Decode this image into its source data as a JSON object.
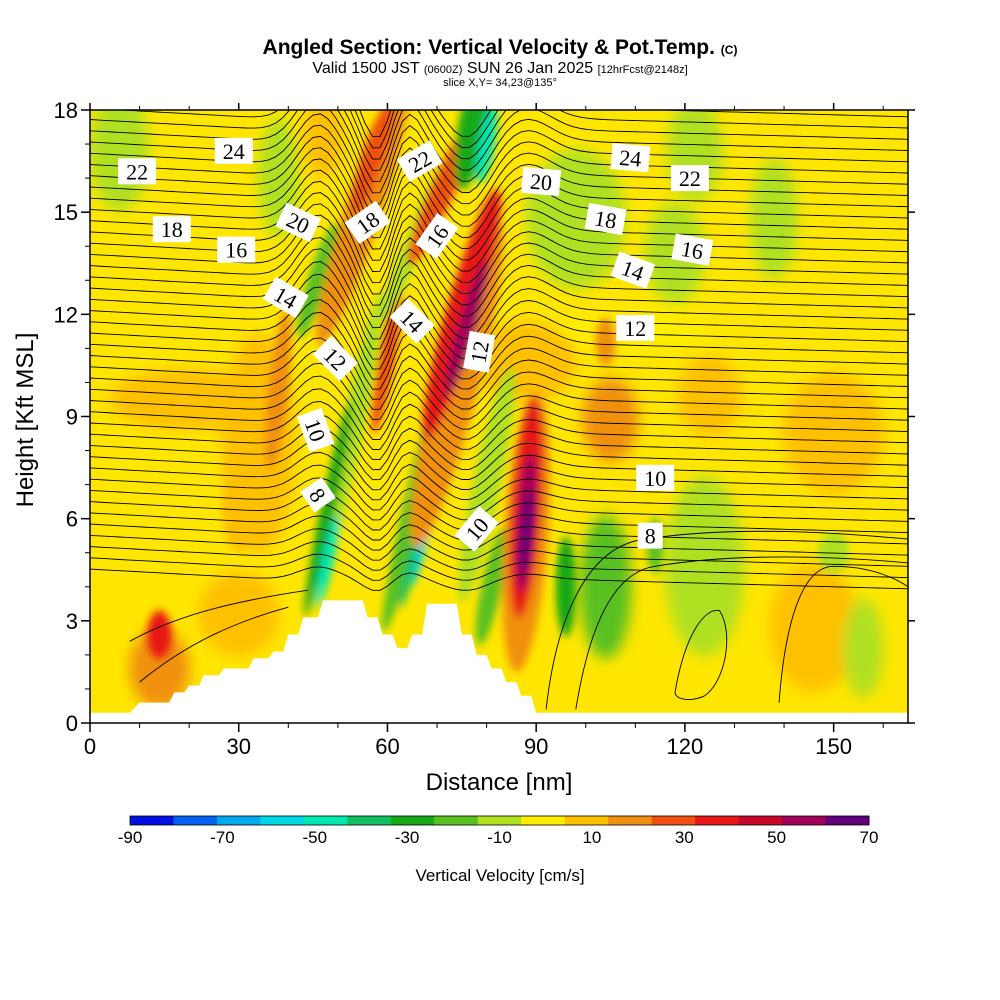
{
  "titles": {
    "main": "Angled Section: Vertical Velocity & Pot.Temp.",
    "main_unit": "(C)",
    "valid_prefix": "Valid 1500 JST",
    "valid_zulu": "(0600Z)",
    "valid_date": "SUN 26 Jan 2025",
    "forecast": "[12hrFcst@2148z]",
    "slice": "slice X,Y= 34,23@135°"
  },
  "chart_data": {
    "type": "heatmap",
    "xlabel": "Distance [nm]",
    "ylabel": "Height [Kft MSL]",
    "xlim": [
      0,
      165
    ],
    "ylim": [
      0,
      18
    ],
    "x_ticks": [
      0,
      30,
      60,
      90,
      120,
      150
    ],
    "y_ticks": [
      0,
      3,
      6,
      9,
      12,
      15,
      18
    ],
    "terrain": [
      [
        0,
        0.3
      ],
      [
        8,
        0.3
      ],
      [
        10,
        0.6
      ],
      [
        16,
        0.6
      ],
      [
        17,
        0.9
      ],
      [
        19,
        0.9
      ],
      [
        20,
        1.1
      ],
      [
        22,
        1.1
      ],
      [
        23,
        1.4
      ],
      [
        26,
        1.4
      ],
      [
        27,
        1.6
      ],
      [
        32,
        1.6
      ],
      [
        33,
        1.9
      ],
      [
        36,
        1.9
      ],
      [
        37,
        2.1
      ],
      [
        39,
        2.1
      ],
      [
        40,
        2.6
      ],
      [
        42,
        2.6
      ],
      [
        43,
        3.1
      ],
      [
        46,
        3.1
      ],
      [
        47,
        3.6
      ],
      [
        55,
        3.6
      ],
      [
        56,
        3.1
      ],
      [
        58,
        3.1
      ],
      [
        59,
        2.6
      ],
      [
        61,
        2.6
      ],
      [
        62,
        2.2
      ],
      [
        64,
        2.2
      ],
      [
        65,
        2.6
      ],
      [
        67,
        2.6
      ],
      [
        68,
        3.5
      ],
      [
        74,
        3.5
      ],
      [
        75,
        2.6
      ],
      [
        77,
        2.6
      ],
      [
        78,
        2.0
      ],
      [
        80,
        2.0
      ],
      [
        81,
        1.6
      ],
      [
        83,
        1.6
      ],
      [
        84,
        1.2
      ],
      [
        86,
        1.2
      ],
      [
        87,
        0.8
      ],
      [
        89,
        0.8
      ],
      [
        90,
        0.3
      ],
      [
        165,
        0.3
      ]
    ],
    "colorbar": {
      "title": "Vertical Velocity [cm/s]",
      "labels": [
        "-90",
        "-70",
        "-50",
        "-30",
        "-10",
        "10",
        "30",
        "50",
        "70"
      ],
      "levels": [
        -90,
        -80,
        -70,
        -60,
        -50,
        -40,
        -30,
        -20,
        -10,
        0,
        10,
        20,
        30,
        40,
        50,
        60,
        70
      ],
      "colors": [
        "#0010e0",
        "#0060f0",
        "#00a8f0",
        "#00d8e8",
        "#00e8b0",
        "#10c060",
        "#18a818",
        "#58c020",
        "#b0e020",
        "#ffee00",
        "#ffc000",
        "#f09010",
        "#f05010",
        "#e81818",
        "#c8082a",
        "#a0005a",
        "#60007a"
      ]
    },
    "isentrope_labels": [
      {
        "text": "22",
        "x": 9.5,
        "y": 16.2,
        "angle": 0
      },
      {
        "text": "24",
        "x": 29,
        "y": 16.8,
        "angle": 0
      },
      {
        "text": "18",
        "x": 16.5,
        "y": 14.5,
        "angle": 0
      },
      {
        "text": "16",
        "x": 29.5,
        "y": 13.9,
        "angle": 0
      },
      {
        "text": "20",
        "x": 42,
        "y": 14.7,
        "angle": 25
      },
      {
        "text": "14",
        "x": 39.5,
        "y": 12.5,
        "angle": 30
      },
      {
        "text": "18",
        "x": 56,
        "y": 14.7,
        "angle": -35
      },
      {
        "text": "22",
        "x": 66.5,
        "y": 16.5,
        "angle": -30
      },
      {
        "text": "16",
        "x": 70,
        "y": 14.3,
        "angle": -55
      },
      {
        "text": "14",
        "x": 65,
        "y": 11.8,
        "angle": 45
      },
      {
        "text": "12",
        "x": 49.5,
        "y": 10.7,
        "angle": 45
      },
      {
        "text": "10",
        "x": 45.5,
        "y": 8.6,
        "angle": 70
      },
      {
        "text": "8",
        "x": 46,
        "y": 6.7,
        "angle": 55
      },
      {
        "text": "12",
        "x": 78.5,
        "y": 10.9,
        "angle": -80
      },
      {
        "text": "10",
        "x": 78,
        "y": 5.7,
        "angle": -50
      },
      {
        "text": "20",
        "x": 91,
        "y": 15.9,
        "angle": 5
      },
      {
        "text": "24",
        "x": 109,
        "y": 16.6,
        "angle": 5
      },
      {
        "text": "18",
        "x": 104,
        "y": 14.8,
        "angle": 10
      },
      {
        "text": "22",
        "x": 121,
        "y": 16.0,
        "angle": 0
      },
      {
        "text": "16",
        "x": 121.5,
        "y": 13.9,
        "angle": 10
      },
      {
        "text": "14",
        "x": 109.5,
        "y": 13.3,
        "angle": 20
      },
      {
        "text": "12",
        "x": 110,
        "y": 11.6,
        "angle": 0
      },
      {
        "text": "10",
        "x": 114,
        "y": 7.2,
        "angle": 0
      },
      {
        "text": "8",
        "x": 113,
        "y": 5.5,
        "angle": 0
      }
    ]
  }
}
